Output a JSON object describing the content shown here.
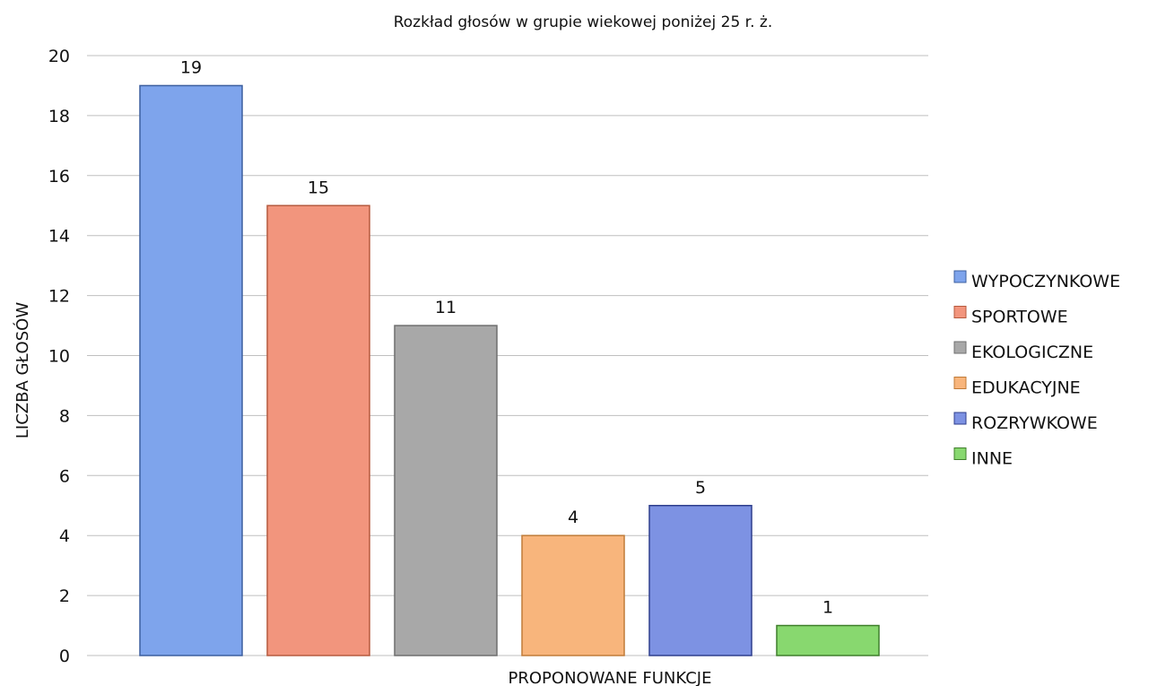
{
  "chart_data": {
    "type": "bar",
    "title": "Rozkład głosów w grupie wiekowej poniżej 25 r. ż.",
    "xlabel": "PROPONOWANE FUNKCJE",
    "ylabel": "LICZBA GŁOSÓW",
    "ylim": [
      0,
      20
    ],
    "yticks": [
      0,
      2,
      4,
      6,
      8,
      10,
      12,
      14,
      16,
      18,
      20
    ],
    "grid": true,
    "legend_position": "right",
    "series": [
      {
        "name": "WYPOCZYNKOWE",
        "values": [
          19
        ],
        "color": "#7ea4ec",
        "stroke": "#3c5f9f"
      },
      {
        "name": "SPORTOWE",
        "values": [
          15
        ],
        "color": "#f2957d",
        "stroke": "#b65a3e"
      },
      {
        "name": "EKOLOGICZNE",
        "values": [
          11
        ],
        "color": "#a8a8a8",
        "stroke": "#6f6f6f"
      },
      {
        "name": "EDUKACYJNE",
        "values": [
          4
        ],
        "color": "#f8b57c",
        "stroke": "#c07b38"
      },
      {
        "name": "ROZRYWKOWE",
        "values": [
          5
        ],
        "color": "#7d92e3",
        "stroke": "#2f3f8d"
      },
      {
        "name": "INNE",
        "values": [
          1
        ],
        "color": "#88d86f",
        "stroke": "#3f7f2b"
      }
    ]
  }
}
